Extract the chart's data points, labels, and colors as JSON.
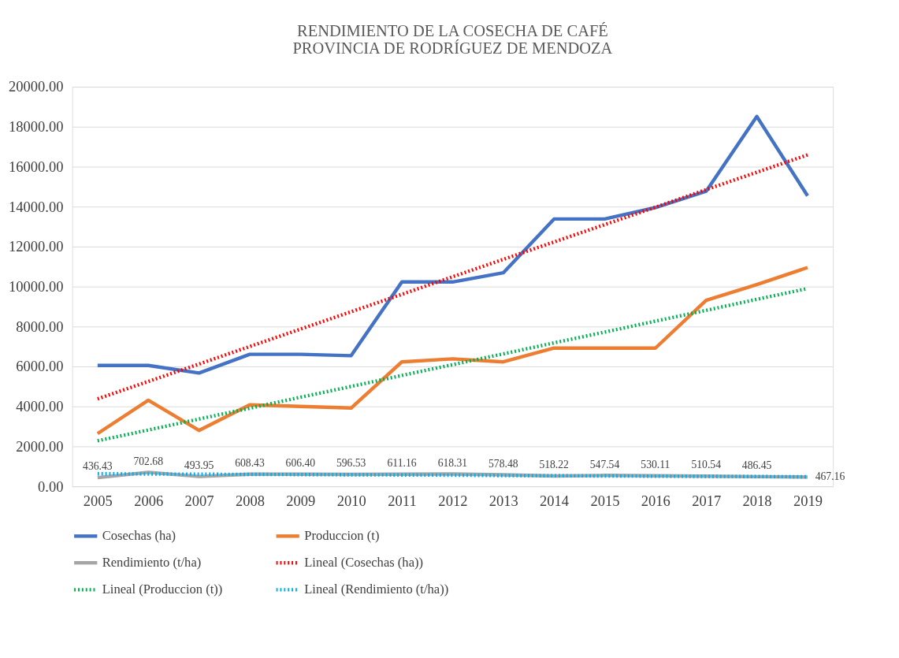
{
  "chart_data": {
    "type": "line",
    "title": [
      "RENDIMIENTO  DE LA COSECHA  DE CAFÉ",
      "PROVINCIA  DE RODRÍGUEZ  DE MENDOZA"
    ],
    "categories": [
      "2005",
      "2006",
      "2007",
      "2008",
      "2009",
      "2010",
      "2011",
      "2012",
      "2013",
      "2014",
      "2015",
      "2016",
      "2017",
      "2018",
      "2019"
    ],
    "ylim": [
      0,
      20000
    ],
    "yticks": [
      {
        "value": 0,
        "label": "0.00"
      },
      {
        "value": 2000,
        "label": "2000.00"
      },
      {
        "value": 4000,
        "label": "4000.00"
      },
      {
        "value": 6000,
        "label": "6000.00"
      },
      {
        "value": 8000,
        "label": "8000.00"
      },
      {
        "value": 10000,
        "label": "10000.00"
      },
      {
        "value": 12000,
        "label": "12000.00"
      },
      {
        "value": 14000,
        "label": "14000.00"
      },
      {
        "value": 16000,
        "label": "16000.00"
      },
      {
        "value": 18000,
        "label": "18000.00"
      },
      {
        "value": 20000,
        "label": "20000.00"
      }
    ],
    "grid": "y",
    "legend": "bottom",
    "marker": "none",
    "series": [
      {
        "name": "Cosechas (ha)",
        "color": "#4472c4",
        "line_style": "solid",
        "values": [
          6050,
          6050,
          5670,
          6610,
          6610,
          6540,
          10230,
          10230,
          10690,
          13380,
          13380,
          13950,
          14770,
          18510,
          14540
        ]
      },
      {
        "name": "Produccion (t)",
        "color": "#ed7d31",
        "line_style": "solid",
        "values": [
          2640,
          4310,
          2800,
          4080,
          4000,
          3920,
          6230,
          6380,
          6230,
          6920,
          6920,
          6920,
          9310,
          10100,
          10950
        ]
      },
      {
        "name": "Rendimiento (t/ha)",
        "color": "#a5a5a5",
        "line_style": "solid",
        "values": [
          436.43,
          702.68,
          493.95,
          608.43,
          606.4,
          596.53,
          611.16,
          618.31,
          578.48,
          518.22,
          547.54,
          530.11,
          510.54,
          486.45,
          467.16
        ],
        "value_labels": [
          "436.43",
          "702.68",
          "493.95",
          "608.43",
          "606.40",
          "596.53",
          "611.16",
          "618.31",
          "578.48",
          "518.22",
          "547.54",
          "530.11",
          "510.54",
          "486.45",
          "467.16"
        ]
      },
      {
        "name": "Lineal (Cosechas (ha))",
        "color": "#ff0000",
        "line_style": "dotted",
        "values": [
          4380,
          5250,
          6120,
          7000,
          7870,
          8740,
          9610,
          10490,
          11360,
          12230,
          13100,
          13970,
          14850,
          15720,
          16590
        ]
      },
      {
        "name": "Lineal (Produccion (t))",
        "color": "#00b050",
        "line_style": "dotted",
        "values": [
          2280,
          2820,
          3370,
          3910,
          4460,
          5000,
          5550,
          6090,
          6630,
          7180,
          7720,
          8270,
          8810,
          9360,
          9900
        ]
      },
      {
        "name": "Lineal (Rendimiento (t/ha))",
        "color": "#00b0f0",
        "line_style": "dotted",
        "values": [
          630,
          620,
          610,
          600,
          590,
          580,
          570,
          560,
          540,
          530,
          520,
          510,
          500,
          490,
          480
        ]
      }
    ]
  }
}
